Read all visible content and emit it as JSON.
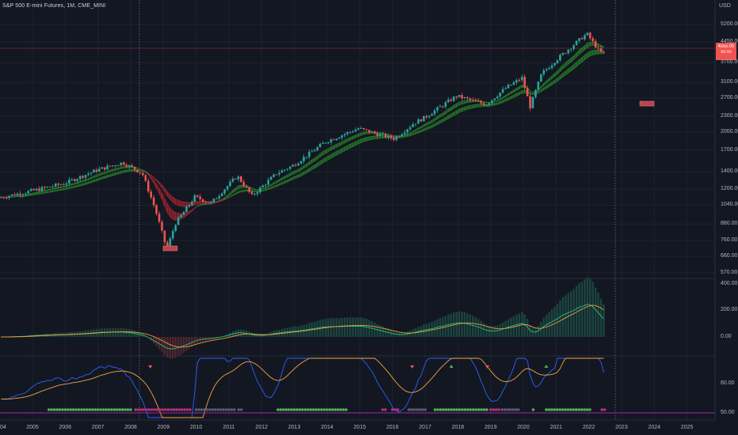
{
  "header": {
    "symbol_text": "S&P 500 E-mini Futures, 1M, CME_MINI"
  },
  "currency": "USD",
  "last_price_tag": {
    "line1": "4xxx.00",
    "line2": "xx:xx",
    "color": "#f05350"
  },
  "colors": {
    "background": "#131722",
    "grid": "#1e222d",
    "up": "#26a69a",
    "down": "#ef5350",
    "ribbon_up": "#1b5e20",
    "ribbon_down": "#7a1c25",
    "macd_fast": "#26c281",
    "macd_slow": "#f39a3c",
    "osc_blue": "#2962ff",
    "osc_orange": "#f7a43b",
    "dot_green": "#4caf50",
    "dot_magenta": "#b0307a",
    "dot_gray": "#555b6e",
    "baseline": "#9c27b0"
  },
  "price_axis_labels": [
    "5200.00",
    "4450.00",
    "3700.00",
    "3100.00",
    "2700.00",
    "2300.00",
    "2000.00",
    "1700.00",
    "1400.00",
    "1200.00",
    "1040.00",
    "880.00",
    "760.00",
    "660.00",
    "570.00"
  ],
  "macd_axis_labels": [
    "400.00",
    "200.00",
    "0.00"
  ],
  "osc_axis_labels": [
    "60.00",
    "50.00"
  ],
  "time_labels": [
    "04",
    "2005",
    "2006",
    "2007",
    "2008",
    "2009",
    "2010",
    "2011",
    "2012",
    "2013",
    "2014",
    "2015",
    "2016",
    "2017",
    "2018",
    "2019",
    "2020",
    "2021",
    "2022",
    "2023",
    "2024",
    "2025"
  ],
  "markers": {
    "down_triangles": [
      2008.6,
      2016.6,
      2018.9
    ],
    "up_triangles": [
      2017.8,
      2020.7
    ]
  },
  "chart_data": {
    "type": "candlestick",
    "title": "S&P 500 E-mini Futures, 1M, CME_MINI",
    "y_scale": "log",
    "y_unit": "USD",
    "x_range": [
      2004.0,
      2025.6
    ],
    "y_range": [
      540,
      5600
    ],
    "price_path": [
      {
        "t": 2004.0,
        "p": 1110
      },
      {
        "t": 2005.0,
        "p": 1180
      },
      {
        "t": 2006.0,
        "p": 1260
      },
      {
        "t": 2007.0,
        "p": 1420
      },
      {
        "t": 2007.8,
        "p": 1520
      },
      {
        "t": 2008.4,
        "p": 1380
      },
      {
        "t": 2008.8,
        "p": 1000
      },
      {
        "t": 2009.15,
        "p": 700
      },
      {
        "t": 2009.4,
        "p": 880
      },
      {
        "t": 2010.0,
        "p": 1120
      },
      {
        "t": 2010.5,
        "p": 1060
      },
      {
        "t": 2011.3,
        "p": 1350
      },
      {
        "t": 2011.75,
        "p": 1130
      },
      {
        "t": 2012.5,
        "p": 1380
      },
      {
        "t": 2013.0,
        "p": 1480
      },
      {
        "t": 2014.0,
        "p": 1830
      },
      {
        "t": 2015.0,
        "p": 2060
      },
      {
        "t": 2015.7,
        "p": 1940
      },
      {
        "t": 2016.1,
        "p": 1880
      },
      {
        "t": 2016.7,
        "p": 2160
      },
      {
        "t": 2017.0,
        "p": 2260
      },
      {
        "t": 2018.0,
        "p": 2750
      },
      {
        "t": 2018.9,
        "p": 2550
      },
      {
        "t": 2019.5,
        "p": 2950
      },
      {
        "t": 2020.0,
        "p": 3230
      },
      {
        "t": 2020.25,
        "p": 2500
      },
      {
        "t": 2020.6,
        "p": 3350
      },
      {
        "t": 2021.0,
        "p": 3750
      },
      {
        "t": 2021.9,
        "p": 4700
      },
      {
        "t": 2022.0,
        "p": 4760
      },
      {
        "t": 2022.3,
        "p": 4200
      },
      {
        "t": 2022.45,
        "p": 4000
      }
    ],
    "macd_range": [
      -60,
      420
    ],
    "oscillator_range": [
      48,
      75
    ]
  }
}
